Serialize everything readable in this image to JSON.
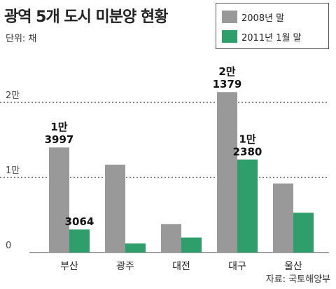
{
  "chart_data": {
    "type": "bar",
    "title": "광역 5개 도시 미분양 현황",
    "unit_label": "단위: 채",
    "source": "자료: 국토해양부",
    "categories": [
      "부산",
      "광주",
      "대전",
      "대구",
      "울산"
    ],
    "series": [
      {
        "name": "2008년 말",
        "color": "#999999",
        "values": [
          13997,
          11700,
          3800,
          21379,
          9200
        ]
      },
      {
        "name": "2011년 1월 말",
        "color": "#2e9e6b",
        "values": [
          3064,
          1200,
          2000,
          12380,
          5300
        ]
      }
    ],
    "y_ticks": [
      {
        "value": 0,
        "label": "0"
      },
      {
        "value": 10000,
        "label": "1만"
      },
      {
        "value": 20000,
        "label": "2만"
      }
    ],
    "ylim": [
      0,
      22000
    ],
    "grid": "dotted at 1만 and 2만",
    "legend_position": "top-right",
    "annotations": [
      {
        "category": "부산",
        "series": 0,
        "lines": [
          "1만",
          "3997"
        ]
      },
      {
        "category": "부산",
        "series": 1,
        "lines": [
          "3064"
        ]
      },
      {
        "category": "대구",
        "series": 0,
        "lines": [
          "2만",
          "1379"
        ]
      },
      {
        "category": "대구",
        "series": 1,
        "lines": [
          "1만",
          "2380"
        ]
      }
    ]
  }
}
